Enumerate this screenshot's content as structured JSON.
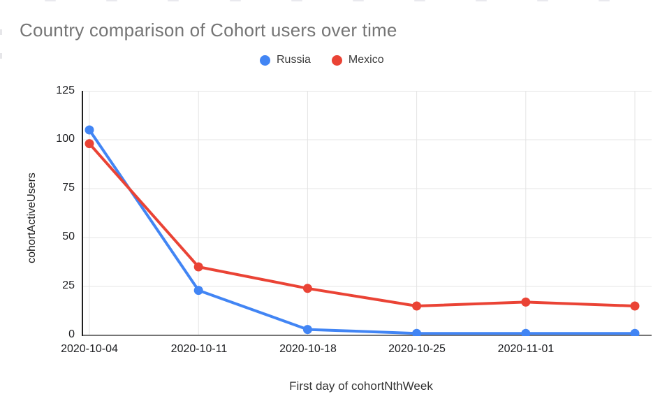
{
  "chart_data": {
    "type": "line",
    "title": "Country comparison of Cohort users over time",
    "xlabel": "First day of cohortNthWeek",
    "ylabel": "cohortActiveUsers",
    "categories": [
      "2020-10-04",
      "2020-10-11",
      "2020-10-18",
      "2020-10-25",
      "2020-11-01",
      ""
    ],
    "series": [
      {
        "name": "Russia",
        "color": "#4285f4",
        "values": [
          105,
          23,
          3,
          1,
          1,
          1
        ]
      },
      {
        "name": "Mexico",
        "color": "#ea4335",
        "values": [
          98,
          35,
          24,
          15,
          17,
          15
        ]
      }
    ],
    "ylim": [
      0,
      125
    ],
    "y_ticks": [
      0,
      25,
      50,
      75,
      100,
      125
    ],
    "y_tick_labels": [
      "125",
      "100",
      "75",
      "50",
      "25",
      "0"
    ],
    "grid": true,
    "legend_position": "top",
    "styles": {
      "gridline_color": "#e4e4e4",
      "baseline_color": "#757575",
      "y_axis_line_color": "#212121",
      "title_color": "#757575",
      "tick_label_color": "#202124",
      "line_width": 4,
      "point_radius": 6.5
    }
  }
}
